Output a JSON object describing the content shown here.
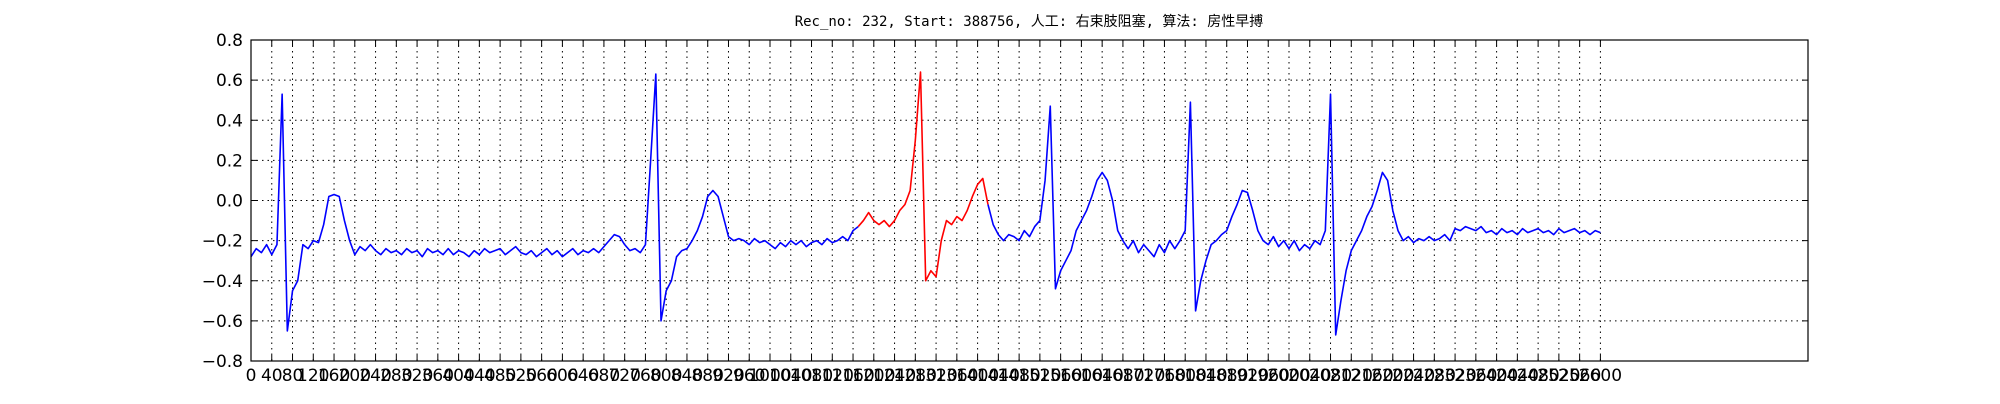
{
  "chart_data": {
    "type": "line",
    "title": "Rec_no: 232, Start: 388756, 人工: 右束肢阻塞, 算法: 房性早搏",
    "x": [
      0,
      10,
      20,
      30,
      40,
      50,
      60,
      70,
      80,
      90,
      100,
      110,
      120,
      130,
      140,
      150,
      160,
      170,
      180,
      190,
      200,
      210,
      220,
      230,
      240,
      250,
      260,
      270,
      280,
      290,
      300,
      310,
      320,
      330,
      340,
      350,
      360,
      370,
      380,
      390,
      400,
      410,
      420,
      430,
      440,
      450,
      460,
      470,
      480,
      490,
      500,
      510,
      520,
      530,
      540,
      550,
      560,
      570,
      580,
      590,
      600,
      610,
      620,
      630,
      640,
      650,
      660,
      670,
      680,
      690,
      700,
      710,
      720,
      730,
      740,
      750,
      760,
      770,
      780,
      790,
      800,
      810,
      820,
      830,
      840,
      850,
      860,
      870,
      880,
      890,
      900,
      910,
      920,
      930,
      940,
      950,
      960,
      970,
      980,
      990,
      1000,
      1010,
      1020,
      1030,
      1040,
      1050,
      1060,
      1070,
      1080,
      1090,
      1100,
      1110,
      1120,
      1130,
      1140,
      1150,
      1160,
      1170,
      1180,
      1190,
      1200,
      1210,
      1220,
      1230,
      1240,
      1250,
      1260,
      1270,
      1280,
      1290,
      1300,
      1310,
      1320,
      1330,
      1340,
      1350,
      1360,
      1370,
      1380,
      1390,
      1400,
      1410,
      1420,
      1430,
      1440,
      1450,
      1460,
      1470,
      1480,
      1490,
      1500,
      1510,
      1520,
      1530,
      1540,
      1550,
      1560,
      1570,
      1580,
      1590,
      1600,
      1610,
      1620,
      1630,
      1640,
      1650,
      1660,
      1670,
      1680,
      1690,
      1700,
      1710,
      1720,
      1730,
      1740,
      1750,
      1760,
      1770,
      1780,
      1790,
      1800,
      1810,
      1820,
      1830,
      1840,
      1850,
      1860,
      1870,
      1880,
      1890,
      1900,
      1910,
      1920,
      1930,
      1940,
      1950,
      1960,
      1970,
      1980,
      1990,
      2000,
      2010,
      2020,
      2030,
      2040,
      2050,
      2060,
      2070,
      2080,
      2090,
      2100,
      2110,
      2120,
      2130,
      2140,
      2150,
      2160,
      2170,
      2180,
      2190,
      2200,
      2210,
      2220,
      2230,
      2240,
      2250,
      2260,
      2270,
      2280,
      2290,
      2300,
      2310,
      2320,
      2330,
      2340,
      2350,
      2360,
      2370,
      2380,
      2390,
      2400,
      2410,
      2420,
      2430,
      2440,
      2450,
      2460,
      2470,
      2480,
      2490,
      2500,
      2510,
      2520,
      2530,
      2540,
      2550,
      2560,
      2570,
      2580,
      2590,
      2600
    ],
    "series": [
      {
        "color": "#0000ff",
        "values": [
          -0.28,
          -0.24,
          -0.26,
          -0.22,
          -0.27,
          -0.22,
          0.53,
          -0.65,
          -0.45,
          -0.4,
          -0.22,
          -0.24,
          -0.2,
          -0.21,
          -0.12,
          0.02,
          0.03,
          0.02,
          -0.1,
          -0.2,
          -0.27,
          -0.23,
          -0.25,
          -0.22,
          -0.25,
          -0.27,
          -0.24,
          -0.26,
          -0.25,
          -0.27,
          -0.24,
          -0.26,
          -0.25,
          -0.28,
          -0.24,
          -0.26,
          -0.25,
          -0.27,
          -0.24,
          -0.27,
          -0.25,
          -0.26,
          -0.28,
          -0.25,
          -0.27,
          -0.24,
          -0.26,
          -0.25,
          -0.24,
          -0.27,
          -0.25,
          -0.23,
          -0.26,
          -0.27,
          -0.25,
          -0.28,
          -0.26,
          -0.24,
          -0.27,
          -0.25,
          -0.28,
          -0.26,
          -0.24,
          -0.27,
          -0.25,
          -0.26,
          -0.24,
          -0.26,
          -0.23,
          -0.2,
          -0.17,
          -0.18,
          -0.22,
          -0.25,
          -0.24,
          -0.26,
          -0.22,
          0.2,
          0.63,
          -0.6,
          -0.45,
          -0.4,
          -0.28,
          -0.25,
          -0.24,
          -0.2,
          -0.15,
          -0.08,
          0.02,
          0.05,
          0.02,
          -0.08,
          -0.18,
          -0.2,
          -0.19,
          -0.2,
          -0.22,
          -0.19,
          -0.21,
          -0.2,
          -0.22,
          -0.24,
          -0.21,
          -0.23,
          -0.2,
          -0.22,
          -0.2,
          -0.23,
          -0.21,
          -0.2,
          -0.22,
          -0.19,
          -0.21,
          -0.2,
          -0.18,
          -0.2,
          -0.15,
          -0.13,
          null,
          null,
          null,
          null,
          null,
          null,
          null,
          null,
          null,
          null,
          null,
          null,
          null,
          null,
          null,
          null,
          null,
          null,
          null,
          null,
          null,
          null,
          null,
          null,
          -0.02,
          -0.12,
          -0.17,
          -0.2,
          -0.17,
          -0.18,
          -0.2,
          -0.15,
          -0.18,
          -0.13,
          -0.1,
          0.1,
          0.47,
          -0.44,
          -0.35,
          -0.3,
          -0.25,
          -0.15,
          -0.1,
          -0.05,
          0.02,
          0.1,
          0.14,
          0.1,
          0.0,
          -0.15,
          -0.2,
          -0.24,
          -0.2,
          -0.26,
          -0.22,
          -0.25,
          -0.28,
          -0.22,
          -0.26,
          -0.2,
          -0.24,
          -0.2,
          -0.15,
          0.49,
          -0.55,
          -0.4,
          -0.3,
          -0.22,
          -0.2,
          -0.17,
          -0.15,
          -0.08,
          -0.02,
          0.05,
          0.04,
          -0.05,
          -0.15,
          -0.2,
          -0.22,
          -0.18,
          -0.23,
          -0.2,
          -0.24,
          -0.2,
          -0.25,
          -0.22,
          -0.24,
          -0.2,
          -0.22,
          -0.15,
          0.53,
          -0.67,
          -0.5,
          -0.35,
          -0.25,
          -0.2,
          -0.15,
          -0.08,
          -0.03,
          0.05,
          0.14,
          0.1,
          -0.05,
          -0.15,
          -0.2,
          -0.18,
          -0.21,
          -0.19,
          -0.2,
          -0.18,
          -0.2,
          -0.19,
          -0.17,
          -0.2,
          -0.14,
          -0.15,
          -0.13,
          -0.14,
          -0.15,
          -0.13,
          -0.16,
          -0.15,
          -0.17,
          -0.14,
          -0.16,
          -0.15,
          -0.17,
          -0.14,
          -0.16,
          -0.15,
          -0.14,
          -0.16,
          -0.15,
          -0.17,
          -0.14,
          -0.16,
          -0.15,
          -0.14,
          -0.16,
          -0.15,
          -0.17,
          -0.15,
          -0.16
        ]
      },
      {
        "color": "#ff0000",
        "values": [
          null,
          null,
          null,
          null,
          null,
          null,
          null,
          null,
          null,
          null,
          null,
          null,
          null,
          null,
          null,
          null,
          null,
          null,
          null,
          null,
          null,
          null,
          null,
          null,
          null,
          null,
          null,
          null,
          null,
          null,
          null,
          null,
          null,
          null,
          null,
          null,
          null,
          null,
          null,
          null,
          null,
          null,
          null,
          null,
          null,
          null,
          null,
          null,
          null,
          null,
          null,
          null,
          null,
          null,
          null,
          null,
          null,
          null,
          null,
          null,
          null,
          null,
          null,
          null,
          null,
          null,
          null,
          null,
          null,
          null,
          null,
          null,
          null,
          null,
          null,
          null,
          null,
          null,
          null,
          null,
          null,
          null,
          null,
          null,
          null,
          null,
          null,
          null,
          null,
          null,
          null,
          null,
          null,
          null,
          null,
          null,
          null,
          null,
          null,
          null,
          null,
          null,
          null,
          null,
          null,
          null,
          null,
          null,
          null,
          null,
          null,
          null,
          null,
          null,
          null,
          null,
          null,
          -0.13,
          -0.1,
          -0.06,
          -0.1,
          -0.12,
          -0.1,
          -0.13,
          -0.1,
          -0.05,
          -0.02,
          0.05,
          0.3,
          0.64,
          -0.4,
          -0.35,
          -0.38,
          -0.2,
          -0.1,
          -0.12,
          -0.08,
          -0.1,
          -0.05,
          0.02,
          0.08,
          0.11,
          -0.02,
          null,
          null,
          null,
          null,
          null,
          null,
          null,
          null,
          null,
          null,
          null,
          null,
          null,
          null,
          null,
          null,
          null,
          null,
          null,
          null,
          null,
          null,
          null,
          null,
          null,
          null,
          null,
          null,
          null,
          null,
          null,
          null,
          null,
          null,
          null,
          null,
          null,
          null,
          null,
          null,
          null,
          null,
          null,
          null,
          null,
          null,
          null,
          null,
          null,
          null,
          null,
          null,
          null,
          null,
          null,
          null,
          null,
          null,
          null,
          null,
          null,
          null,
          null,
          null,
          null,
          null,
          null,
          null,
          null,
          null,
          null,
          null,
          null,
          null,
          null,
          null,
          null,
          null,
          null,
          null,
          null,
          null,
          null,
          null,
          null,
          null,
          null,
          null,
          null,
          null,
          null,
          null,
          null,
          null,
          null,
          null,
          null,
          null,
          null,
          null,
          null,
          null,
          null,
          null,
          null,
          null,
          null,
          null,
          null,
          null,
          null,
          null,
          null,
          null,
          null,
          null,
          null,
          null
        ]
      }
    ],
    "xlim": [
      0,
      3000
    ],
    "xticks": [
      0,
      40,
      80,
      120,
      160,
      200,
      240,
      280,
      320,
      360,
      400,
      440,
      480,
      520,
      560,
      600,
      640,
      680,
      720,
      760,
      800,
      840,
      880,
      920,
      960,
      1000,
      1040,
      1080,
      1120,
      1160,
      1200,
      1240,
      1280,
      1320,
      1360,
      1400,
      1440,
      1480,
      1520,
      1560,
      1600,
      1640,
      1680,
      1720,
      1760,
      1800,
      1840,
      1880,
      1920,
      1960,
      2000,
      2040,
      2080,
      2120,
      2160,
      2200,
      2240,
      2280,
      2320,
      2360,
      2400,
      2440,
      2480,
      2520,
      2560,
      2600
    ],
    "ylim": [
      -0.8,
      0.8
    ],
    "yticks": [
      {
        "value": -0.8,
        "label": "−0.8"
      },
      {
        "value": -0.6,
        "label": "−0.6"
      },
      {
        "value": -0.4,
        "label": "−0.4"
      },
      {
        "value": -0.2,
        "label": "−0.2"
      },
      {
        "value": 0,
        "label": "0.0"
      },
      0.2,
      0.4,
      0.6,
      0.8
    ],
    "grid": true
  }
}
